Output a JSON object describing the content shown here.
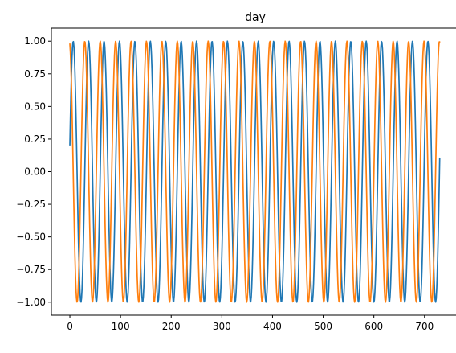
{
  "chart_data": {
    "type": "line",
    "title": "day",
    "xlabel": "",
    "ylabel": "",
    "xlim": [
      -36.5,
      768.5
    ],
    "ylim": [
      -1.1,
      1.1
    ],
    "x_ticks": [
      0,
      100,
      200,
      300,
      400,
      500,
      600,
      700
    ],
    "y_ticks": [
      -1.0,
      -0.75,
      -0.5,
      -0.25,
      0.0,
      0.25,
      0.5,
      0.75,
      1.0
    ],
    "x_tick_labels": [
      "0",
      "100",
      "200",
      "300",
      "400",
      "500",
      "600",
      "700"
    ],
    "y_tick_labels": [
      "−1.00",
      "−0.75",
      "−0.50",
      "−0.25",
      "0.00",
      "0.25",
      "0.50",
      "0.75",
      "1.00"
    ],
    "grid": false,
    "legend": "none",
    "x_range": [
      0,
      730
    ],
    "series": [
      {
        "function": "sin",
        "period": 30.4375,
        "phase_offset_days": 1.0,
        "color": "#1f77b4"
      },
      {
        "function": "cos",
        "period": 30.4375,
        "phase_offset_days": 1.0,
        "color": "#ff7f0e"
      }
    ]
  }
}
